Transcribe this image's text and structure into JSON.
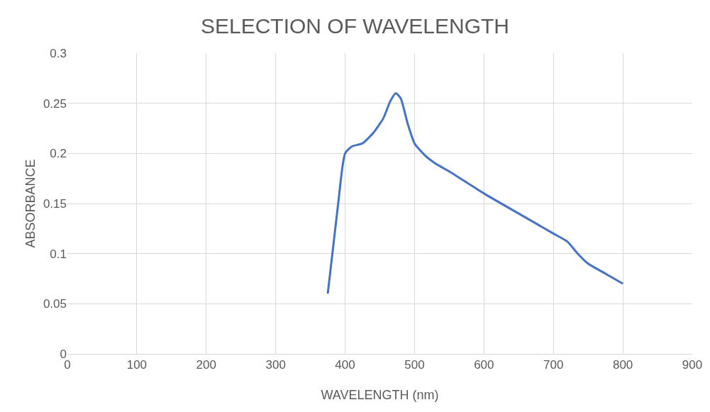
{
  "chart_data": {
    "type": "line",
    "title": "SELECTION OF WAVELENGTH",
    "xlabel": "WAVELENGTH (nm)",
    "ylabel": "ABSORBANCE",
    "x": [
      375,
      390,
      400,
      410,
      425,
      440,
      455,
      465,
      473,
      480,
      490,
      500,
      515,
      530,
      550,
      600,
      650,
      700,
      720,
      735,
      750,
      775,
      800
    ],
    "series": [
      {
        "color": "#4472c4",
        "values": [
          0.06,
          0.15,
          0.2,
          0.207,
          0.21,
          0.22,
          0.235,
          0.252,
          0.26,
          0.255,
          0.23,
          0.21,
          0.198,
          0.19,
          0.182,
          0.16,
          0.14,
          0.12,
          0.112,
          0.1,
          0.09,
          0.08,
          0.07
        ]
      }
    ],
    "xlim": [
      0,
      900
    ],
    "xticks": [
      0,
      100,
      200,
      300,
      400,
      500,
      600,
      700,
      800,
      900
    ],
    "ylim": [
      0,
      0.3
    ],
    "yticks": [
      0,
      0.05,
      0.1,
      0.15,
      0.2,
      0.25,
      0.3
    ],
    "grid": true,
    "marker": "none",
    "line_style": "solid"
  }
}
